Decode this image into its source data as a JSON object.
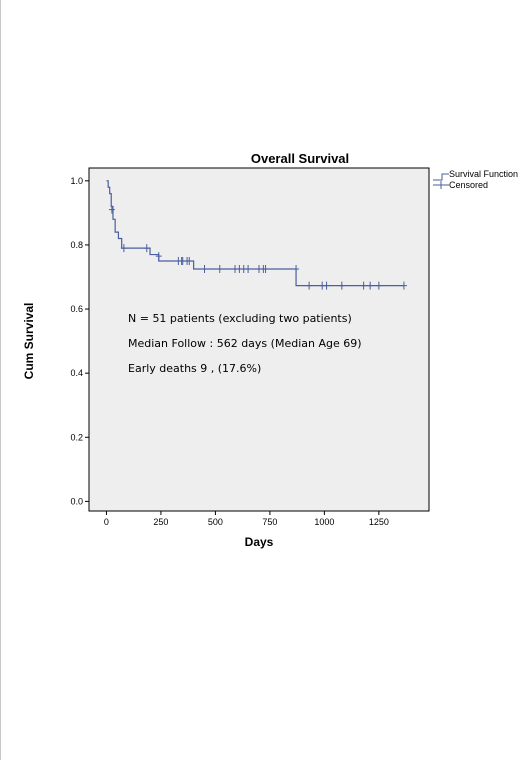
{
  "chart_data": {
    "type": "line",
    "title": "Overall Survival",
    "xlabel": "Days",
    "ylabel": "Cum Survival",
    "xlim": [
      -80,
      1480
    ],
    "ylim": [
      -0.03,
      1.04
    ],
    "xticks": [
      0,
      250,
      500,
      750,
      1000,
      1250
    ],
    "yticks": [
      0.0,
      0.2,
      0.4,
      0.6,
      0.8,
      1.0
    ],
    "xtick_labels": [
      "0",
      "250",
      "500",
      "750",
      "1000",
      "1250"
    ],
    "ytick_labels": [
      "0.0",
      "0.2",
      "0.4",
      "0.6",
      "0.8",
      "1.0"
    ],
    "grid": false,
    "background": "#eeeeee",
    "line_color": "#4a5fa0",
    "legend": {
      "placement": "right, outside top",
      "entries": [
        {
          "label": "Survival Function",
          "style": "step-line"
        },
        {
          "label": "Censored",
          "style": "plus-marker"
        }
      ]
    },
    "series": [
      {
        "name": "Survival Function",
        "x": [
          0,
          8,
          15,
          22,
          30,
          40,
          55,
          70,
          180,
          200,
          240,
          270,
          400,
          870,
          1365
        ],
        "y": [
          1.0,
          0.98,
          0.96,
          0.92,
          0.88,
          0.84,
          0.82,
          0.79,
          0.79,
          0.77,
          0.75,
          0.75,
          0.725,
          0.673,
          0.673
        ]
      },
      {
        "name": "Censored",
        "x": [
          25,
          80,
          185,
          240,
          330,
          345,
          350,
          370,
          380,
          450,
          520,
          590,
          610,
          630,
          650,
          700,
          720,
          730,
          870,
          930,
          990,
          1010,
          1080,
          1180,
          1210,
          1250,
          1365
        ],
        "y": [
          0.91,
          0.79,
          0.79,
          0.765,
          0.75,
          0.75,
          0.75,
          0.75,
          0.75,
          0.725,
          0.725,
          0.725,
          0.725,
          0.725,
          0.725,
          0.725,
          0.725,
          0.725,
          0.725,
          0.673,
          0.673,
          0.673,
          0.673,
          0.673,
          0.673,
          0.673,
          0.673
        ]
      }
    ],
    "annotations": [
      "N = 51 patients  (excluding two patients)",
      "Median Follow : 562 days (Median Age 69)",
      "Early deaths 9 , (17.6%)"
    ]
  }
}
